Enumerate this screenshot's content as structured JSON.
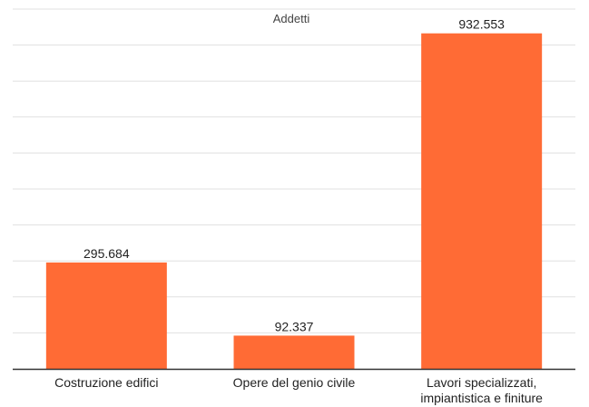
{
  "chart_data": {
    "type": "bar",
    "title": "Addetti",
    "categories": [
      [
        "Costruzione edifici"
      ],
      [
        "Opere del genio civile"
      ],
      [
        "Lavori specializzati,",
        "impiantistica e finiture"
      ]
    ],
    "values": [
      295684,
      92337,
      932553
    ],
    "data_labels": [
      "295.684",
      "92.337",
      "932.553"
    ],
    "xlabel": "",
    "ylabel": "",
    "ylim": [
      0,
      1000000
    ],
    "grid": true,
    "legend": "none",
    "bar_color": "#ff6b35",
    "grid_color": "#e0e0e0",
    "axis_color": "#333333"
  }
}
